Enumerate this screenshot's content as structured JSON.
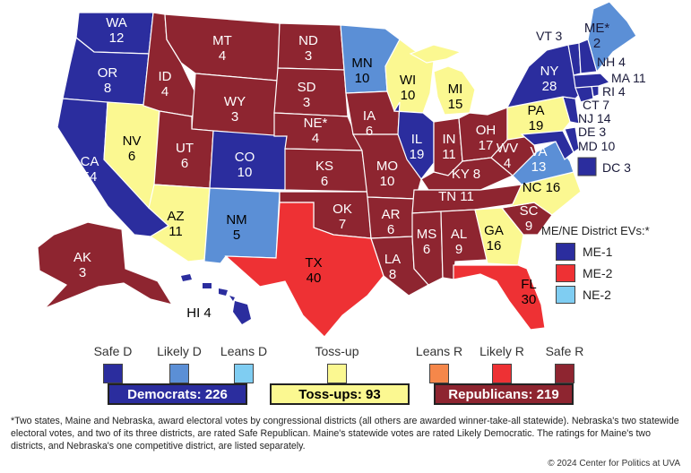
{
  "colors": {
    "safe_d": "#2b2d9e",
    "likely_d": "#5b8fd6",
    "leans_d": "#7fcdf2",
    "toss_up": "#fbf891",
    "leans_r": "#f5874a",
    "likely_r": "#ee3134",
    "safe_r": "#8e2530"
  },
  "states": {
    "WA": "WA\n12",
    "OR": "OR\n8",
    "CA": "CA\n54",
    "NV": "NV\n6",
    "ID": "ID\n4",
    "MT": "MT\n4",
    "WY": "WY\n3",
    "UT": "UT\n6",
    "AZ": "AZ\n11",
    "CO": "CO\n10",
    "NM": "NM\n5",
    "ND": "ND\n3",
    "SD": "SD\n3",
    "NE": "NE*\n4",
    "KS": "KS\n6",
    "OK": "OK\n7",
    "TX": "TX\n40",
    "MN": "MN\n10",
    "IA": "IA\n6",
    "MO": "MO\n10",
    "AR": "AR\n6",
    "LA": "LA\n8",
    "WI": "WI\n10",
    "IL": "IL\n19",
    "MI": "MI\n15",
    "IN": "IN\n11",
    "OH": "OH\n17",
    "KY": "KY 8",
    "TN": "TN 11",
    "MS": "MS\n6",
    "AL": "AL\n9",
    "GA": "GA\n16",
    "FL": "FL\n30",
    "SC": "SC\n9",
    "NC": "NC 16",
    "VA": "VA\n13",
    "WV": "WV\n4",
    "PA": "PA\n19",
    "NY": "NY\n28",
    "ME": "ME*\n2",
    "AK": "AK\n3",
    "HI": "HI 4"
  },
  "east_labels": {
    "VT": "VT 3",
    "NH": "NH 4",
    "MA": "MA 11",
    "RI": "RI 4",
    "CT": "CT 7",
    "NJ": "NJ 14",
    "DE": "DE 3",
    "MD": "MD 10",
    "DC": "DC 3"
  },
  "district_legend": {
    "title": "ME/NE District EVs:*",
    "items": [
      {
        "label": "ME-1",
        "rating": "safe_d"
      },
      {
        "label": "ME-2",
        "rating": "likely_r"
      },
      {
        "label": "NE-2",
        "rating": "leans_d"
      }
    ]
  },
  "ratings": [
    {
      "key": "safe_d",
      "label": "Safe D"
    },
    {
      "key": "likely_d",
      "label": "Likely D"
    },
    {
      "key": "leans_d",
      "label": "Leans D"
    },
    {
      "key": "toss_up",
      "label": "Toss-up"
    },
    {
      "key": "leans_r",
      "label": "Leans R"
    },
    {
      "key": "likely_r",
      "label": "Likely R"
    },
    {
      "key": "safe_r",
      "label": "Safe R"
    }
  ],
  "totals": {
    "democrats": "Democrats: 226",
    "tossups": "Toss-ups: 93",
    "republicans": "Republicans: 219"
  },
  "footnote": "*Two states, Maine and Nebraska, award electoral votes by congressional districts (all others are awarded winner-take-all statewide). Nebraska's two statewide electoral votes, and two of its three districts, are rated Safe Republican. Maine's statewide votes are rated Likely Democratic. The ratings for Maine's two districts, and Nebraska's one competitive district, are listed separately.",
  "copyright": "© 2024 Center for Politics at UVA"
}
